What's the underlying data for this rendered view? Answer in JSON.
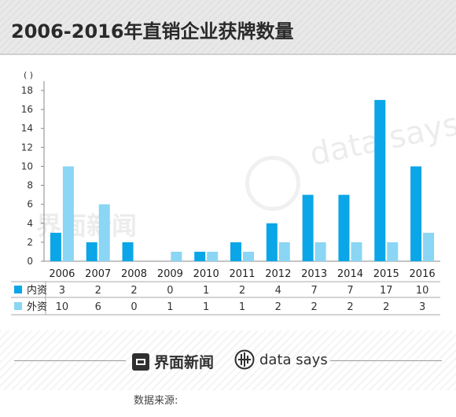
{
  "title": "2006-2016年直销企业获牌数量",
  "footer": {
    "brand_cn": "界面新闻",
    "brand_en": "data says",
    "source_label": "数据来源:",
    "watermark_cn": "界面新闻",
    "watermark_en": "data says"
  },
  "colors": {
    "domestic": "#0aa6e8",
    "foreign": "#8ad6f4",
    "axis": "#888888",
    "table_line": "#aaaaaa"
  },
  "chart_data": {
    "type": "bar",
    "unit_label": "( )",
    "categories": [
      "2006",
      "2007",
      "2008",
      "2009",
      "2010",
      "2011",
      "2012",
      "2013",
      "2014",
      "2015",
      "2016"
    ],
    "series": [
      {
        "name": "内资",
        "color": "#0aa6e8",
        "values": [
          3,
          2,
          2,
          0,
          1,
          2,
          4,
          7,
          7,
          17,
          10
        ]
      },
      {
        "name": "外资",
        "color": "#8ad6f4",
        "values": [
          10,
          6,
          0,
          1,
          1,
          1,
          2,
          2,
          2,
          2,
          3
        ]
      }
    ],
    "yticks": [
      0,
      2,
      4,
      6,
      8,
      10,
      12,
      14,
      16,
      18
    ],
    "ylim": [
      0,
      18
    ],
    "grid": false,
    "legend": "data table below x-axis"
  }
}
